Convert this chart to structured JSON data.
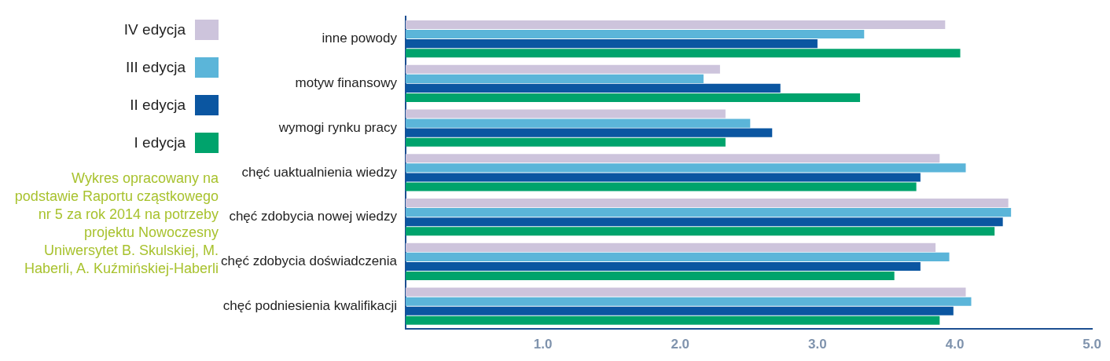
{
  "chart_data": {
    "type": "bar",
    "orientation": "horizontal",
    "categories": [
      "inne powody",
      "motyw finansowy",
      "wymogi rynku pracy",
      "chęć uaktualnienia wiedzy",
      "chęć zdobycia nowej wiedzy",
      "chęć zdobycia doświadczenia",
      "chęć podniesienia kwalifikacji"
    ],
    "series": [
      {
        "name": "IV edycja",
        "color": "#cdc4dc",
        "values": [
          3.93,
          2.29,
          2.33,
          3.89,
          4.39,
          3.86,
          4.08
        ]
      },
      {
        "name": "III edycja",
        "color": "#5bb5d9",
        "values": [
          3.34,
          2.17,
          2.51,
          4.08,
          4.41,
          3.96,
          4.12
        ]
      },
      {
        "name": "II edycja",
        "color": "#0b56a1",
        "values": [
          3.0,
          2.73,
          2.67,
          3.75,
          4.35,
          3.75,
          3.99
        ]
      },
      {
        "name": "I edycja",
        "color": "#00a36c",
        "values": [
          4.04,
          3.31,
          2.33,
          3.72,
          4.29,
          3.56,
          3.89
        ]
      }
    ],
    "xlim": [
      0,
      5
    ],
    "xticks": [
      {
        "value": 1,
        "label": "1.0"
      },
      {
        "value": 2,
        "label": "2.0"
      },
      {
        "value": 3,
        "label": "3.0"
      },
      {
        "value": 4,
        "label": "4.0"
      },
      {
        "value": 5,
        "label": "5.0"
      }
    ],
    "grid": false,
    "legend": "left",
    "annotations": [
      "Wykres opracowany na podstawie Raportu cząstkowego nr 5 za rok 2014 na potrzeby projektu Nowoczesny Uniwersytet B. Skulskiej, M. Haberli, A. Kuźmińskiej-Haberli"
    ]
  }
}
